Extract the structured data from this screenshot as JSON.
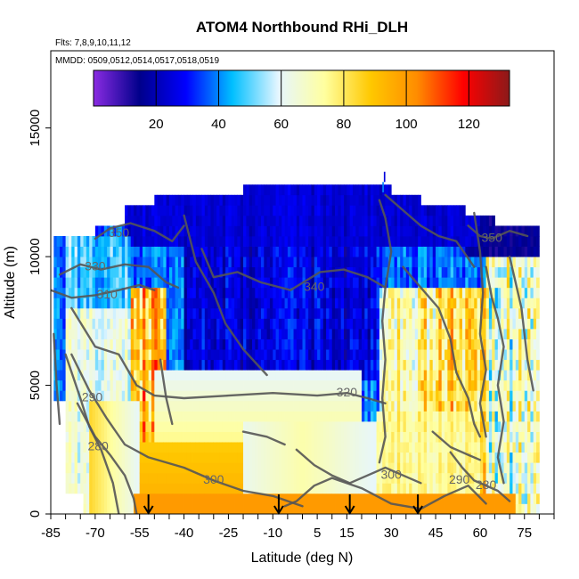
{
  "chart_data": {
    "type": "heatmap",
    "title": "ATOM4 Northbound RHi_DLH",
    "subtitle_flights": "Flts: 7,8,9,10,11,12",
    "subtitle_dates": "MMDD: 0509,0512,0514,0517,0518,0519",
    "xlabel": "Latitude (deg N)",
    "ylabel": "Altitude (m)",
    "xlim": [
      -85,
      85
    ],
    "ylim": [
      0,
      18000
    ],
    "x_ticks": [
      -85,
      -70,
      -55,
      -40,
      -25,
      -10,
      5,
      15,
      30,
      45,
      60,
      75
    ],
    "y_ticks": [
      0,
      5000,
      10000,
      15000
    ],
    "colorbar": {
      "ticks": [
        20,
        40,
        60,
        80,
        100,
        120
      ],
      "range": [
        0,
        133
      ],
      "colors": [
        "#8a2be2",
        "#00008b",
        "#0000ff",
        "#00bfff",
        "#e6f6ff",
        "#ffff9f",
        "#ffc800",
        "#ff8c00",
        "#ff0000",
        "#8b1a1a"
      ]
    },
    "contour_levels": [
      280,
      290,
      300,
      310,
      320,
      330,
      340,
      350
    ],
    "contour_labels": [
      {
        "text": "350",
        "lat": -62,
        "alt": 10900
      },
      {
        "text": "330",
        "lat": -70,
        "alt": 9600
      },
      {
        "text": "310",
        "lat": -66,
        "alt": 8500
      },
      {
        "text": "340",
        "lat": 4,
        "alt": 8800
      },
      {
        "text": "320",
        "lat": 15,
        "alt": 4700
      },
      {
        "text": "290",
        "lat": -71,
        "alt": 4500
      },
      {
        "text": "280",
        "lat": -69,
        "alt": 2600
      },
      {
        "text": "300",
        "lat": -30,
        "alt": 1300
      },
      {
        "text": "300",
        "lat": 30,
        "alt": 1500
      },
      {
        "text": "290",
        "lat": 53,
        "alt": 1300
      },
      {
        "text": "280",
        "lat": 62,
        "alt": 1100
      },
      {
        "text": "350",
        "lat": 64,
        "alt": 10700
      }
    ],
    "arrow_lats": [
      -52,
      -8,
      16,
      39
    ]
  }
}
